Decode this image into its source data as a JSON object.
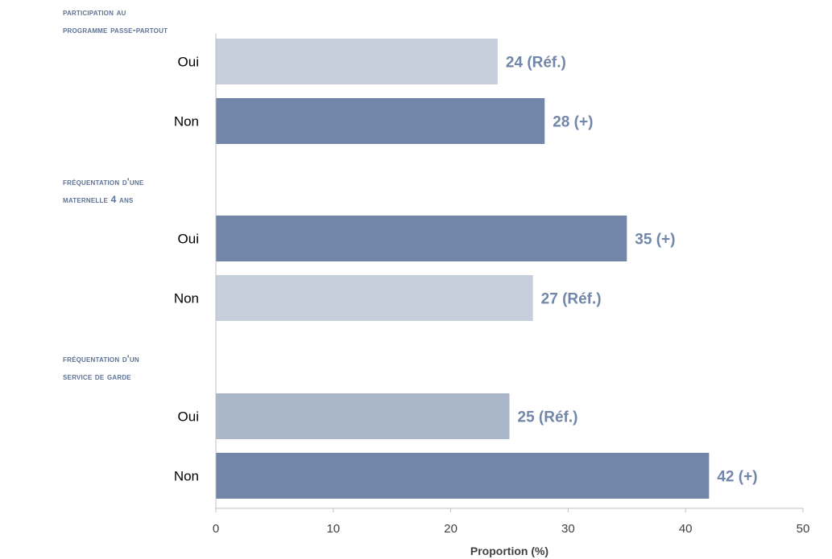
{
  "chart_data": {
    "type": "bar",
    "orientation": "horizontal",
    "xlabel": "Proportion (%)",
    "xlim": [
      0,
      50
    ],
    "xticks": [
      0,
      10,
      20,
      30,
      40,
      50
    ],
    "grid": false,
    "groups": [
      {
        "title_lines": [
          "PARTICIPATION AU",
          "PROGRAMME PASSE-PARTOUT"
        ],
        "bars": [
          {
            "category": "Oui",
            "value": 24,
            "label": "24 (Réf.)",
            "color": "#c7cedc"
          },
          {
            "category": "Non",
            "value": 28,
            "label": "28 (+)",
            "color": "#7186a8"
          }
        ]
      },
      {
        "title_lines": [
          "FRÉQUENTATION D'UNE",
          "MATERNELLE 4 ANS"
        ],
        "bars": [
          {
            "category": "Oui",
            "value": 35,
            "label": "35 (+)",
            "color": "#7186a8"
          },
          {
            "category": "Non",
            "value": 27,
            "label": "27 (Réf.)",
            "color": "#c7cedc"
          }
        ]
      },
      {
        "title_lines": [
          "FRÉQUENTATION D'UN",
          "SERVICE DE GARDE"
        ],
        "bars": [
          {
            "category": "Oui",
            "value": 25,
            "label": "25 (Réf.)",
            "color": "#aab6ca"
          },
          {
            "category": "Non",
            "value": 42,
            "label": "42 (+)",
            "color": "#7186a8"
          }
        ]
      }
    ],
    "label_color": "#7186a8"
  }
}
